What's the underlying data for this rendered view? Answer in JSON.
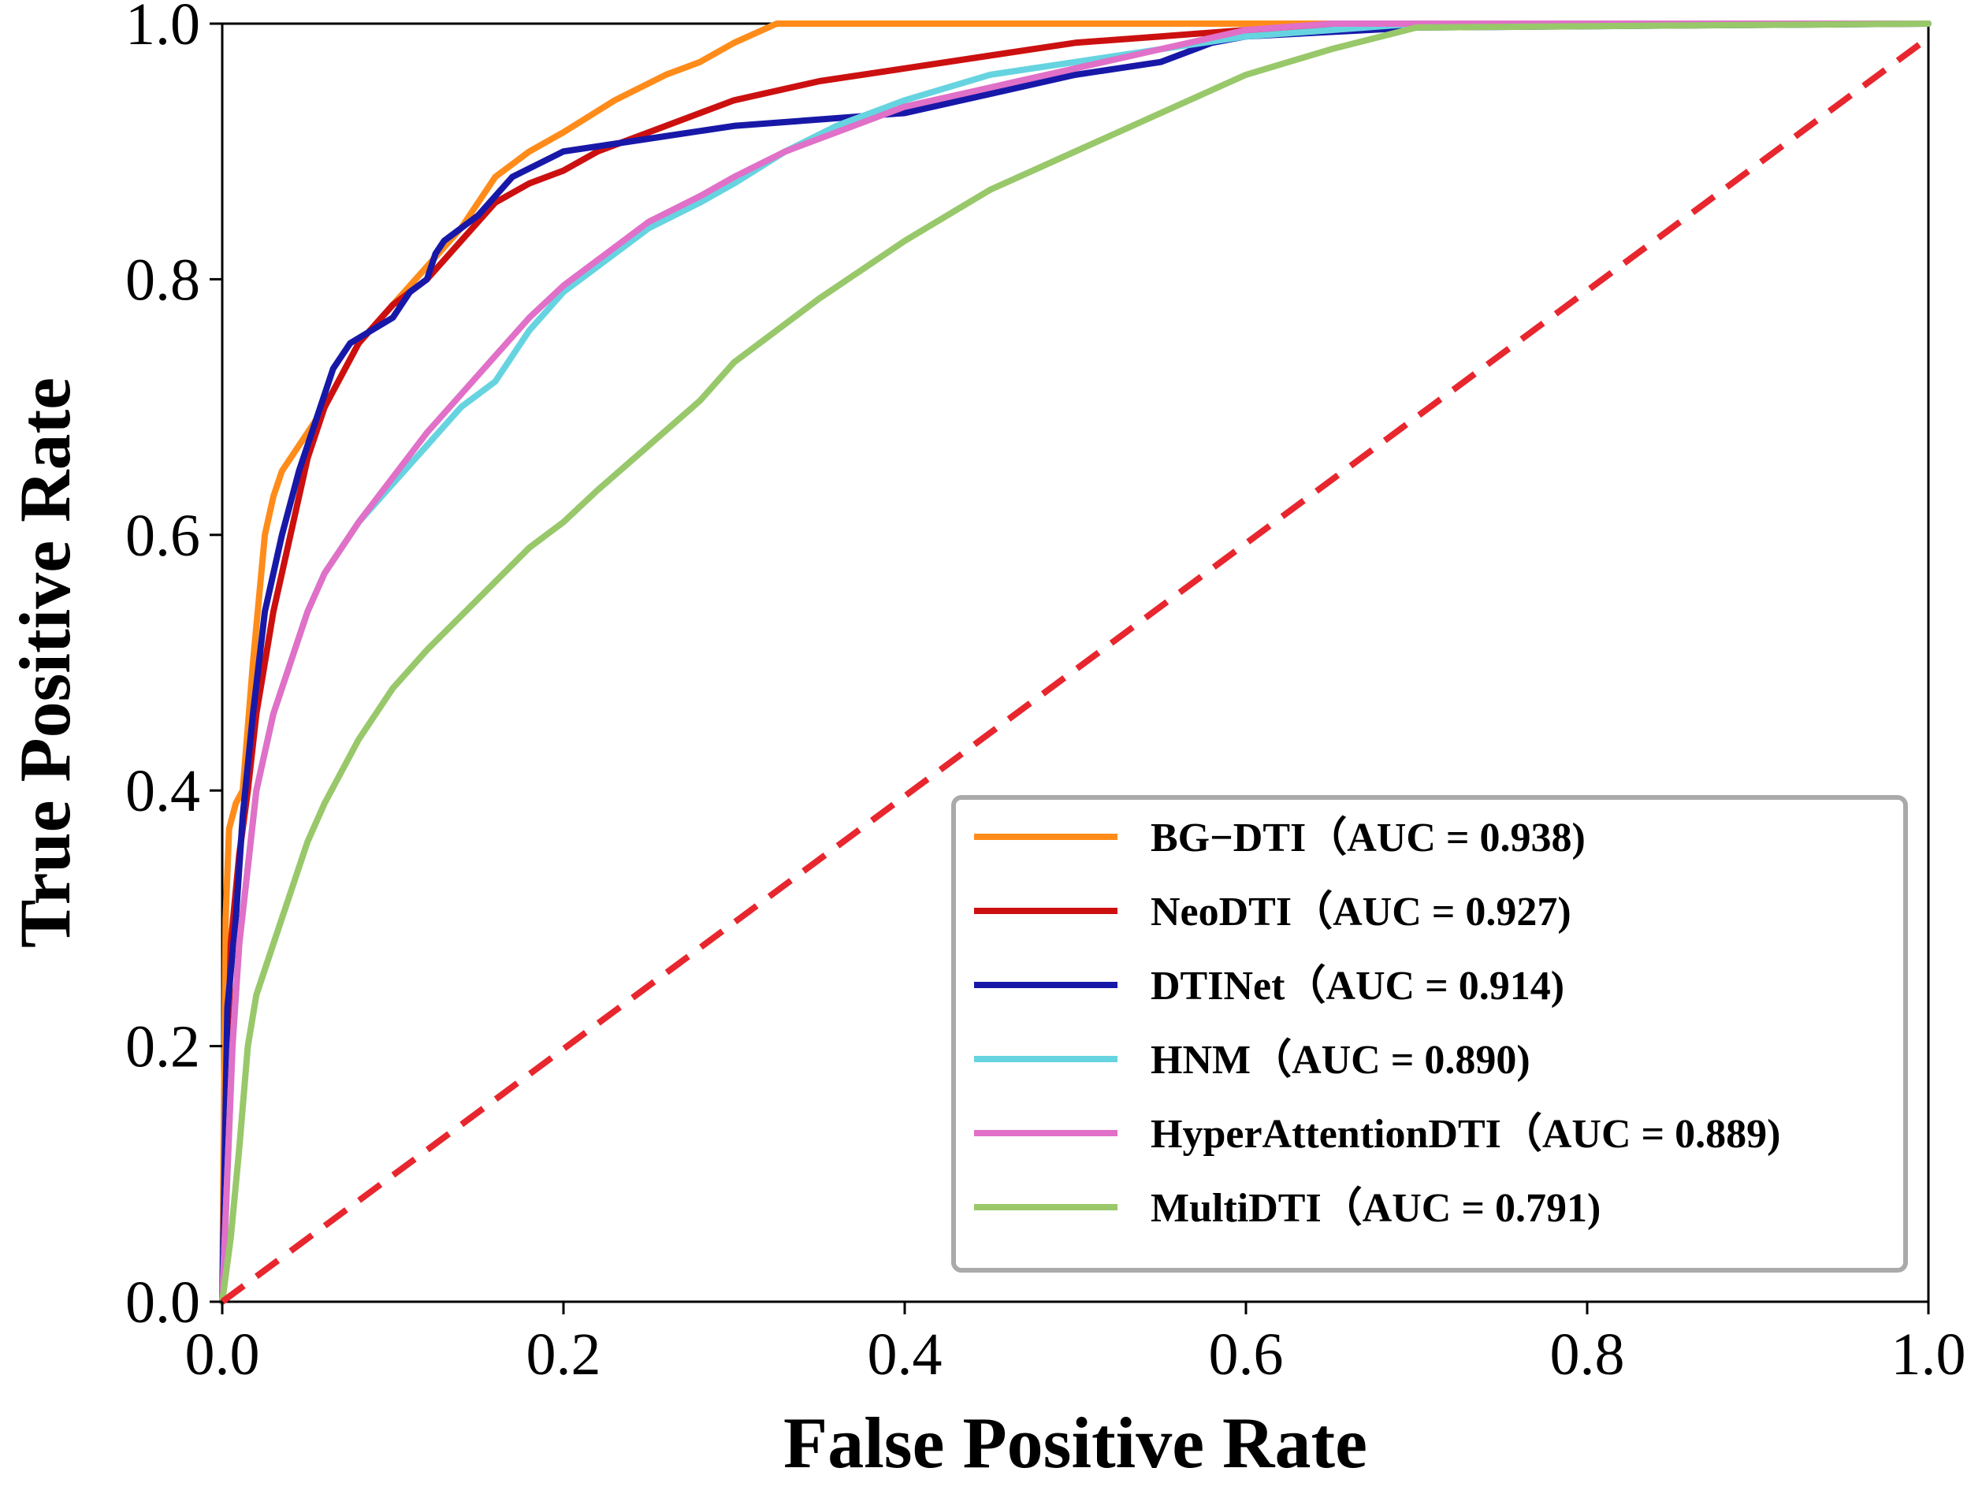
{
  "chart_data": {
    "type": "line",
    "title": "",
    "xlabel": "False Positive Rate",
    "ylabel": "True Positive Rate",
    "xlim": [
      0.0,
      1.0
    ],
    "ylim": [
      0.0,
      1.0
    ],
    "grid": false,
    "legend_position": "bottom-right",
    "xticks": [
      "0.0",
      "0.2",
      "0.4",
      "0.6",
      "0.8",
      "1.0"
    ],
    "yticks": [
      "0.0",
      "0.2",
      "0.4",
      "0.6",
      "0.8",
      "1.0"
    ],
    "series": [
      {
        "name": "BG-DTI",
        "legend": "BG−DTI（AUC = 0.938)",
        "color": "#ff8c1a",
        "x": [
          0.0,
          0.002,
          0.004,
          0.008,
          0.012,
          0.018,
          0.025,
          0.03,
          0.035,
          0.045,
          0.06,
          0.08,
          0.1,
          0.12,
          0.14,
          0.16,
          0.18,
          0.2,
          0.23,
          0.26,
          0.28,
          0.3,
          0.32,
          0.325,
          0.4,
          0.5,
          0.6,
          0.7,
          0.8,
          1.0
        ],
        "y": [
          0.0,
          0.3,
          0.37,
          0.39,
          0.4,
          0.5,
          0.6,
          0.63,
          0.65,
          0.67,
          0.7,
          0.75,
          0.78,
          0.81,
          0.84,
          0.88,
          0.9,
          0.915,
          0.94,
          0.96,
          0.97,
          0.985,
          0.997,
          1.0,
          1.0,
          1.0,
          1.0,
          1.0,
          1.0,
          1.0
        ]
      },
      {
        "name": "NeoDTI",
        "legend": "NeoDTI（AUC = 0.927)",
        "color": "#cc1010",
        "x": [
          0.0,
          0.005,
          0.01,
          0.015,
          0.02,
          0.03,
          0.04,
          0.05,
          0.06,
          0.08,
          0.1,
          0.12,
          0.14,
          0.16,
          0.18,
          0.2,
          0.22,
          0.25,
          0.28,
          0.3,
          0.35,
          0.4,
          0.45,
          0.5,
          0.55,
          0.6,
          0.7,
          1.0
        ],
        "y": [
          0.0,
          0.28,
          0.35,
          0.4,
          0.46,
          0.54,
          0.6,
          0.66,
          0.7,
          0.75,
          0.78,
          0.8,
          0.83,
          0.86,
          0.875,
          0.885,
          0.9,
          0.915,
          0.93,
          0.94,
          0.955,
          0.965,
          0.975,
          0.985,
          0.99,
          0.995,
          1.0,
          1.0
        ]
      },
      {
        "name": "DTINet",
        "legend": "DTINet（AUC = 0.914)",
        "color": "#1818a8",
        "x": [
          0.0,
          0.003,
          0.008,
          0.012,
          0.018,
          0.025,
          0.035,
          0.045,
          0.055,
          0.065,
          0.075,
          0.1,
          0.11,
          0.12,
          0.125,
          0.13,
          0.15,
          0.17,
          0.2,
          0.25,
          0.3,
          0.35,
          0.4,
          0.45,
          0.5,
          0.55,
          0.58,
          0.6,
          0.7,
          1.0
        ],
        "y": [
          0.0,
          0.23,
          0.3,
          0.38,
          0.46,
          0.54,
          0.6,
          0.65,
          0.69,
          0.73,
          0.75,
          0.77,
          0.79,
          0.8,
          0.82,
          0.83,
          0.85,
          0.88,
          0.9,
          0.91,
          0.92,
          0.925,
          0.93,
          0.945,
          0.96,
          0.97,
          0.985,
          0.99,
          0.997,
          1.0
        ]
      },
      {
        "name": "HNM",
        "legend": "HNM（AUC = 0.890)",
        "color": "#66d4e0",
        "x": [
          0.0,
          0.003,
          0.006,
          0.01,
          0.015,
          0.02,
          0.03,
          0.04,
          0.05,
          0.06,
          0.08,
          0.1,
          0.12,
          0.14,
          0.16,
          0.18,
          0.2,
          0.22,
          0.25,
          0.28,
          0.3,
          0.33,
          0.36,
          0.4,
          0.45,
          0.5,
          0.55,
          0.6,
          0.65,
          0.7,
          1.0
        ],
        "y": [
          0.0,
          0.1,
          0.2,
          0.28,
          0.34,
          0.4,
          0.46,
          0.5,
          0.54,
          0.57,
          0.61,
          0.64,
          0.67,
          0.7,
          0.72,
          0.76,
          0.79,
          0.81,
          0.84,
          0.86,
          0.875,
          0.9,
          0.92,
          0.94,
          0.96,
          0.97,
          0.98,
          0.99,
          0.995,
          1.0,
          1.0
        ]
      },
      {
        "name": "HyperAttentionDTI",
        "legend": "HyperAttentionDTI（AUC = 0.889)",
        "color": "#e070c8",
        "x": [
          0.0,
          0.003,
          0.006,
          0.01,
          0.015,
          0.02,
          0.03,
          0.04,
          0.05,
          0.06,
          0.08,
          0.1,
          0.12,
          0.14,
          0.16,
          0.18,
          0.2,
          0.22,
          0.25,
          0.28,
          0.3,
          0.33,
          0.36,
          0.4,
          0.45,
          0.5,
          0.55,
          0.6,
          0.65,
          0.7,
          1.0
        ],
        "y": [
          0.0,
          0.1,
          0.2,
          0.28,
          0.34,
          0.4,
          0.46,
          0.5,
          0.54,
          0.57,
          0.61,
          0.645,
          0.68,
          0.71,
          0.74,
          0.77,
          0.795,
          0.815,
          0.845,
          0.865,
          0.88,
          0.9,
          0.915,
          0.935,
          0.95,
          0.965,
          0.98,
          0.995,
          1.0,
          1.0,
          1.0
        ]
      },
      {
        "name": "MultiDTI",
        "legend": "MultiDTI（AUC = 0.791)",
        "color": "#98c86a",
        "x": [
          0.0,
          0.005,
          0.01,
          0.015,
          0.02,
          0.03,
          0.04,
          0.05,
          0.06,
          0.08,
          0.1,
          0.12,
          0.15,
          0.18,
          0.2,
          0.22,
          0.25,
          0.28,
          0.3,
          0.35,
          0.4,
          0.45,
          0.5,
          0.55,
          0.6,
          0.65,
          0.7,
          1.0
        ],
        "y": [
          0.0,
          0.05,
          0.12,
          0.2,
          0.24,
          0.28,
          0.32,
          0.36,
          0.39,
          0.44,
          0.48,
          0.51,
          0.55,
          0.59,
          0.61,
          0.635,
          0.67,
          0.705,
          0.735,
          0.785,
          0.83,
          0.87,
          0.9,
          0.93,
          0.96,
          0.98,
          0.997,
          1.0
        ]
      }
    ],
    "reference_line": {
      "x": [
        0.0,
        1.0
      ],
      "y": [
        0.0,
        1.0
      ],
      "color": "#e8262e",
      "style": "dashed"
    }
  }
}
